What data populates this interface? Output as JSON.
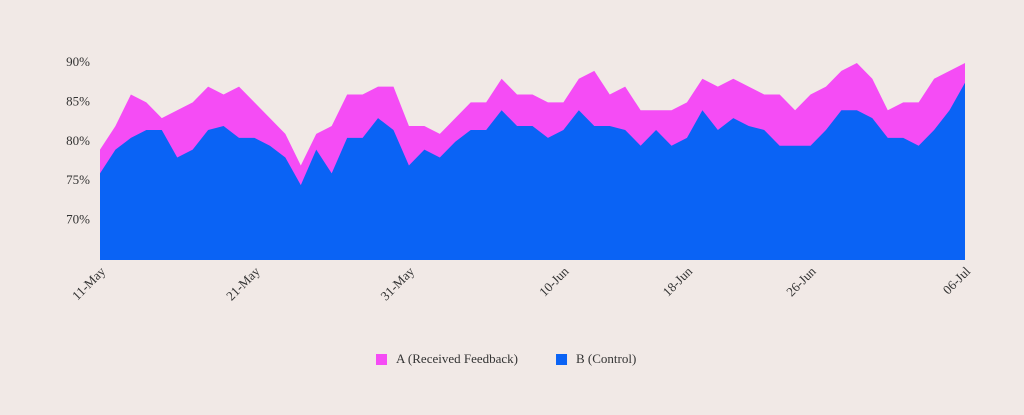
{
  "chart_data": {
    "type": "area",
    "categories": [
      "11-May",
      null,
      null,
      null,
      null,
      null,
      null,
      null,
      null,
      null,
      "21-May",
      null,
      null,
      null,
      null,
      null,
      null,
      null,
      null,
      null,
      "31-May",
      null,
      null,
      null,
      null,
      null,
      null,
      null,
      null,
      null,
      "10-Jun",
      null,
      null,
      null,
      null,
      null,
      null,
      null,
      "18-Jun",
      null,
      null,
      null,
      null,
      null,
      null,
      null,
      "26-Jun",
      null,
      null,
      null,
      null,
      null,
      null,
      null,
      null,
      null,
      "06-Jul"
    ],
    "series": [
      {
        "name": "A (Received Feedback)",
        "color": "#f54cf5",
        "values": [
          79,
          82,
          86,
          85,
          83,
          84,
          85,
          87,
          86,
          87,
          85,
          83,
          81,
          77,
          81,
          82,
          86,
          86,
          87,
          87,
          82,
          82,
          81,
          83,
          85,
          85,
          88,
          86,
          86,
          85,
          85,
          88,
          89,
          86,
          87,
          84,
          84,
          84,
          85,
          88,
          87,
          88,
          87,
          86,
          86,
          84,
          86,
          87,
          89,
          90,
          88,
          84,
          85,
          85,
          88,
          89,
          90
        ]
      },
      {
        "name": "B (Control)",
        "color": "#0a63f5",
        "values": [
          76,
          79,
          80.5,
          81.5,
          81.5,
          78,
          79,
          81.5,
          82,
          80.5,
          80.5,
          79.5,
          78,
          74.5,
          79,
          76,
          80.5,
          80.5,
          83,
          81.5,
          77,
          79,
          78,
          80,
          81.5,
          81.5,
          84,
          82,
          82,
          80.5,
          81.5,
          84,
          82,
          82,
          81.5,
          79.5,
          81.5,
          79.5,
          80.5,
          84,
          81.5,
          83,
          82,
          81.5,
          79.5,
          79.5,
          79.5,
          81.5,
          84,
          84,
          83,
          80.5,
          80.5,
          79.5,
          81.5,
          84,
          87.5
        ]
      }
    ],
    "ylim": [
      65,
      90
    ],
    "yticks": [
      {
        "value": 70,
        "label": "70%"
      },
      {
        "value": 75,
        "label": "75%"
      },
      {
        "value": 80,
        "label": "80%"
      },
      {
        "value": 85,
        "label": "85%"
      },
      {
        "value": 90,
        "label": "90%"
      }
    ],
    "grid": false,
    "legend": "bottom"
  }
}
